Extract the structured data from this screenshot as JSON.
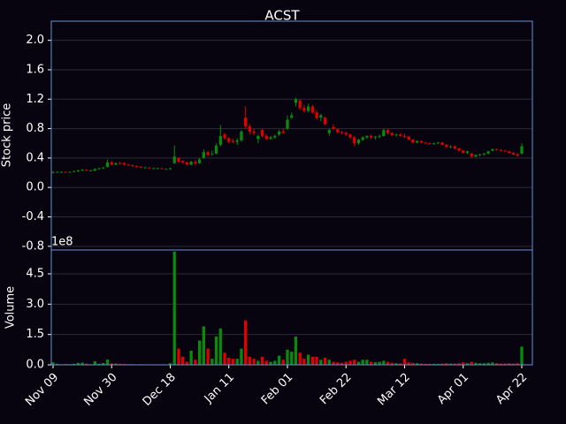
{
  "chart_data": {
    "type": "candlestick",
    "title": "ACST",
    "ylabel": "Stock price",
    "y2label": "Volume",
    "y2offset": "1e8",
    "categories": [
      "Nov 09",
      null,
      null,
      null,
      null,
      null,
      null,
      null,
      null,
      null,
      null,
      null,
      null,
      null,
      "Nov 30",
      null,
      null,
      null,
      null,
      null,
      null,
      null,
      null,
      null,
      null,
      null,
      null,
      null,
      "Dec 18",
      null,
      null,
      null,
      null,
      null,
      null,
      null,
      null,
      null,
      null,
      null,
      null,
      null,
      "Jan 11",
      null,
      null,
      null,
      null,
      null,
      null,
      null,
      null,
      null,
      null,
      null,
      null,
      null,
      "Feb 01",
      null,
      null,
      null,
      null,
      null,
      null,
      null,
      null,
      null,
      null,
      null,
      null,
      null,
      "Feb 22",
      null,
      null,
      null,
      null,
      null,
      null,
      null,
      null,
      null,
      null,
      null,
      null,
      null,
      "Mar 12",
      null,
      null,
      null,
      null,
      null,
      null,
      null,
      null,
      null,
      null,
      null,
      null,
      null,
      "Apr 01",
      null,
      null,
      null,
      null,
      null,
      null,
      null,
      null,
      null,
      null,
      null,
      null,
      null,
      "Apr 22"
    ],
    "open": [
      0.2,
      0.21,
      0.21,
      0.21,
      0.2,
      0.21,
      0.22,
      0.23,
      0.24,
      0.23,
      0.23,
      0.25,
      0.26,
      0.28,
      0.34,
      0.31,
      0.33,
      0.33,
      0.31,
      0.3,
      0.29,
      0.28,
      0.27,
      0.27,
      0.26,
      0.26,
      0.26,
      0.25,
      0.25,
      0.33,
      0.4,
      0.36,
      0.34,
      0.31,
      0.35,
      0.33,
      0.4,
      0.48,
      0.46,
      0.46,
      0.58,
      0.72,
      0.67,
      0.63,
      0.62,
      0.64,
      0.95,
      0.83,
      0.76,
      0.66,
      0.78,
      0.7,
      0.66,
      0.68,
      0.72,
      0.76,
      0.8,
      0.95,
      1.15,
      1.18,
      1.08,
      1.04,
      1.1,
      1.02,
      0.95,
      0.95,
      0.74,
      0.82,
      0.79,
      0.75,
      0.74,
      0.72,
      0.68,
      0.6,
      0.65,
      0.68,
      0.7,
      0.68,
      0.69,
      0.7,
      0.78,
      0.74,
      0.71,
      0.72,
      0.7,
      0.69,
      0.65,
      0.61,
      0.63,
      0.61,
      0.6,
      0.59,
      0.6,
      0.61,
      0.58,
      0.55,
      0.56,
      0.53,
      0.5,
      0.47,
      0.46,
      0.42,
      0.44,
      0.45,
      0.46,
      0.5,
      0.52,
      0.51,
      0.5,
      0.49,
      0.47,
      0.45,
      0.46
    ],
    "high": [
      0.22,
      0.22,
      0.22,
      0.22,
      0.22,
      0.23,
      0.24,
      0.25,
      0.25,
      0.24,
      0.26,
      0.27,
      0.28,
      0.38,
      0.36,
      0.34,
      0.35,
      0.34,
      0.32,
      0.31,
      0.3,
      0.29,
      0.28,
      0.28,
      0.27,
      0.27,
      0.27,
      0.26,
      0.27,
      0.57,
      0.41,
      0.37,
      0.35,
      0.36,
      0.37,
      0.4,
      0.52,
      0.5,
      0.5,
      0.6,
      0.85,
      0.74,
      0.68,
      0.66,
      0.67,
      0.78,
      1.1,
      0.86,
      0.8,
      0.72,
      0.8,
      0.72,
      0.7,
      0.72,
      0.78,
      0.8,
      0.98,
      1.02,
      1.22,
      1.2,
      1.12,
      1.14,
      1.12,
      1.05,
      1.0,
      0.96,
      0.8,
      0.86,
      0.8,
      0.77,
      0.76,
      0.73,
      0.7,
      0.66,
      0.7,
      0.71,
      0.72,
      0.7,
      0.72,
      0.8,
      0.8,
      0.75,
      0.73,
      0.74,
      0.73,
      0.7,
      0.66,
      0.64,
      0.64,
      0.62,
      0.61,
      0.61,
      0.62,
      0.62,
      0.59,
      0.57,
      0.57,
      0.54,
      0.51,
      0.5,
      0.47,
      0.45,
      0.46,
      0.47,
      0.5,
      0.53,
      0.53,
      0.52,
      0.51,
      0.5,
      0.48,
      0.47,
      0.6
    ],
    "low": [
      0.19,
      0.2,
      0.2,
      0.2,
      0.2,
      0.21,
      0.21,
      0.22,
      0.22,
      0.22,
      0.22,
      0.24,
      0.25,
      0.27,
      0.3,
      0.3,
      0.31,
      0.3,
      0.29,
      0.28,
      0.27,
      0.26,
      0.26,
      0.26,
      0.25,
      0.25,
      0.25,
      0.24,
      0.24,
      0.32,
      0.33,
      0.32,
      0.3,
      0.3,
      0.3,
      0.32,
      0.39,
      0.42,
      0.43,
      0.45,
      0.56,
      0.65,
      0.6,
      0.6,
      0.58,
      0.62,
      0.8,
      0.72,
      0.71,
      0.6,
      0.68,
      0.64,
      0.65,
      0.66,
      0.7,
      0.73,
      0.78,
      0.93,
      1.1,
      1.05,
      1.02,
      1.02,
      1.0,
      0.92,
      0.9,
      0.85,
      0.7,
      0.78,
      0.74,
      0.72,
      0.7,
      0.66,
      0.56,
      0.58,
      0.63,
      0.66,
      0.66,
      0.65,
      0.67,
      0.69,
      0.72,
      0.7,
      0.69,
      0.69,
      0.67,
      0.64,
      0.6,
      0.6,
      0.6,
      0.59,
      0.58,
      0.58,
      0.59,
      0.57,
      0.54,
      0.53,
      0.52,
      0.49,
      0.46,
      0.45,
      0.4,
      0.41,
      0.42,
      0.43,
      0.45,
      0.49,
      0.5,
      0.49,
      0.48,
      0.46,
      0.44,
      0.42,
      0.45
    ],
    "close": [
      0.21,
      0.21,
      0.21,
      0.2,
      0.21,
      0.22,
      0.23,
      0.24,
      0.23,
      0.23,
      0.25,
      0.26,
      0.27,
      0.34,
      0.31,
      0.33,
      0.32,
      0.31,
      0.3,
      0.29,
      0.28,
      0.27,
      0.27,
      0.26,
      0.26,
      0.26,
      0.25,
      0.25,
      0.26,
      0.42,
      0.35,
      0.34,
      0.31,
      0.35,
      0.33,
      0.38,
      0.48,
      0.44,
      0.46,
      0.57,
      0.7,
      0.67,
      0.62,
      0.62,
      0.64,
      0.76,
      0.83,
      0.76,
      0.74,
      0.7,
      0.7,
      0.66,
      0.68,
      0.7,
      0.76,
      0.74,
      0.92,
      0.98,
      1.2,
      1.08,
      1.04,
      1.1,
      1.02,
      0.94,
      0.98,
      0.86,
      0.78,
      0.8,
      0.75,
      0.74,
      0.72,
      0.68,
      0.6,
      0.65,
      0.68,
      0.7,
      0.68,
      0.69,
      0.7,
      0.78,
      0.74,
      0.71,
      0.72,
      0.7,
      0.69,
      0.65,
      0.61,
      0.63,
      0.61,
      0.6,
      0.59,
      0.6,
      0.61,
      0.58,
      0.55,
      0.56,
      0.53,
      0.5,
      0.47,
      0.49,
      0.42,
      0.44,
      0.45,
      0.46,
      0.49,
      0.52,
      0.51,
      0.5,
      0.49,
      0.47,
      0.45,
      0.43,
      0.56
    ],
    "volume": [
      12000000.0,
      5000000.0,
      3000000.0,
      4000000.0,
      3000000.0,
      5000000.0,
      10000000.0,
      11000000.0,
      6000000.0,
      3000000.0,
      18000000.0,
      5000000.0,
      9000000.0,
      26000000.0,
      8000000.0,
      6000000.0,
      5000000.0,
      4000000.0,
      3000000.0,
      3000000.0,
      2000000.0,
      3000000.0,
      2000000.0,
      2000000.0,
      2000000.0,
      2000000.0,
      2000000.0,
      2000000.0,
      8000000.0,
      560000000.0,
      80000000.0,
      40000000.0,
      15000000.0,
      70000000.0,
      25000000.0,
      120000000.0,
      190000000.0,
      80000000.0,
      30000000.0,
      140000000.0,
      180000000.0,
      60000000.0,
      35000000.0,
      30000000.0,
      30000000.0,
      80000000.0,
      220000000.0,
      40000000.0,
      30000000.0,
      20000000.0,
      40000000.0,
      20000000.0,
      15000000.0,
      20000000.0,
      45000000.0,
      25000000.0,
      75000000.0,
      65000000.0,
      140000000.0,
      60000000.0,
      30000000.0,
      50000000.0,
      40000000.0,
      40000000.0,
      25000000.0,
      35000000.0,
      25000000.0,
      15000000.0,
      12000000.0,
      10000000.0,
      15000000.0,
      20000000.0,
      25000000.0,
      15000000.0,
      25000000.0,
      25000000.0,
      15000000.0,
      13000000.0,
      15000000.0,
      20000000.0,
      15000000.0,
      10000000.0,
      8000000.0,
      7000000.0,
      30000000.0,
      12000000.0,
      10000000.0,
      8000000.0,
      6000000.0,
      5000000.0,
      5000000.0,
      5000000.0,
      5000000.0,
      6000000.0,
      8000000.0,
      6000000.0,
      6000000.0,
      8000000.0,
      12000000.0,
      8000000.0,
      15000000.0,
      10000000.0,
      8000000.0,
      8000000.0,
      10000000.0,
      12000000.0,
      8000000.0,
      6000000.0,
      6000000.0,
      8000000.0,
      6000000.0,
      8000000.0,
      90000000.0
    ],
    "up_color": "#0a8a0a",
    "down_color": "#e00000",
    "grid": true,
    "ylim": [
      -0.85,
      2.26
    ],
    "yticks": [
      -0.8,
      -0.4,
      {
        "value": 0,
        "label": "0.0"
      },
      0.4,
      0.8,
      1.2,
      1.6,
      {
        "value": 2,
        "label": "2.0"
      }
    ],
    "y2lim": [
      0,
      568000000
    ],
    "y2ticks": [
      {
        "value": 0,
        "label": "0.0"
      },
      {
        "value": 150000000,
        "label": "1.5"
      },
      {
        "value": 300000000,
        "label": "3.0"
      },
      {
        "value": 450000000,
        "label": "4.5"
      }
    ]
  }
}
